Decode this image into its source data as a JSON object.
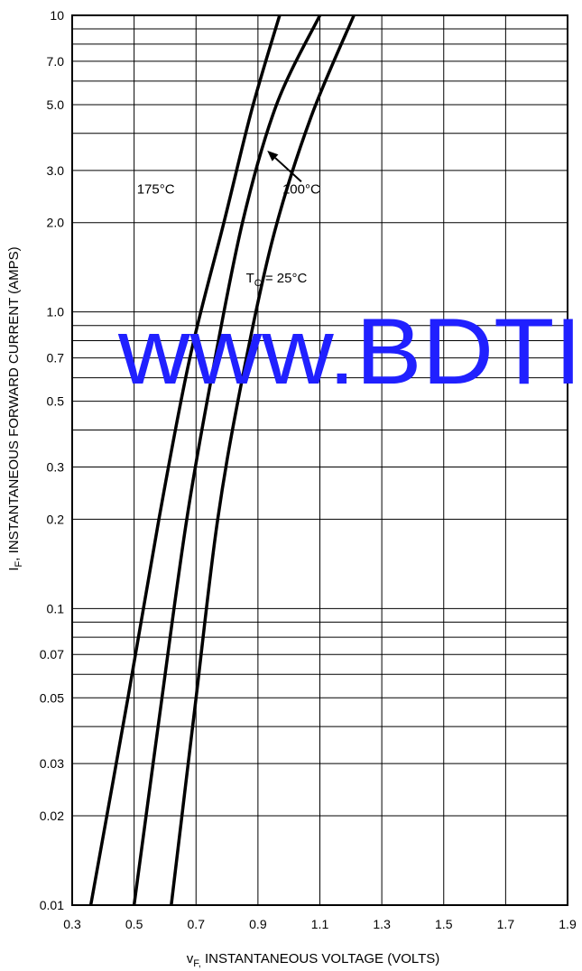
{
  "chart_data": {
    "type": "line",
    "x_scale": "linear",
    "y_scale": "log",
    "xlim": [
      0.3,
      1.9
    ],
    "ylim": [
      0.01,
      10
    ],
    "grid": true,
    "xlabel_main": "v",
    "xlabel_sub": "F,",
    "xlabel_rest": " INSTANTANEOUS VOLTAGE (VOLTS)",
    "ylabel_main": "I",
    "ylabel_sub": "F",
    "ylabel_rest": ", INSTANTANEOUS FORWARD CURRENT (AMPS)",
    "x_ticks": [
      0.3,
      0.5,
      0.7,
      0.9,
      1.1,
      1.3,
      1.5,
      1.7,
      1.9
    ],
    "x_tick_labels": [
      "0.3",
      "0.5",
      "0.7",
      "0.9",
      "1.1",
      "1.3",
      "1.5",
      "1.7",
      "1.9"
    ],
    "y_ticks": [
      0.01,
      0.02,
      0.03,
      0.05,
      0.07,
      0.1,
      0.2,
      0.3,
      0.5,
      0.7,
      1.0,
      2.0,
      3.0,
      5.0,
      7.0,
      10
    ],
    "y_tick_labels": [
      "0.01",
      "0.02",
      "0.03",
      "0.05",
      "0.07",
      "0.1",
      "0.2",
      "0.3",
      "0.5",
      "0.7",
      "1.0",
      "2.0",
      "3.0",
      "5.0",
      "7.0",
      "10"
    ],
    "y_minor_gridlines": [
      0.04,
      0.06,
      0.08,
      0.09,
      0.4,
      0.6,
      0.8,
      0.9,
      4,
      6,
      8,
      9
    ],
    "series": [
      {
        "label": "175°C",
        "points": [
          [
            0.36,
            0.01
          ],
          [
            0.48,
            0.05
          ],
          [
            0.58,
            0.2
          ],
          [
            0.68,
            0.7
          ],
          [
            0.79,
            2.0
          ],
          [
            0.88,
            4.8
          ],
          [
            0.97,
            10
          ]
        ]
      },
      {
        "label": "100°C",
        "points": [
          [
            0.5,
            0.01
          ],
          [
            0.59,
            0.05
          ],
          [
            0.67,
            0.2
          ],
          [
            0.75,
            0.6
          ],
          [
            0.85,
            2.0
          ],
          [
            0.96,
            5.0
          ],
          [
            1.1,
            10
          ]
        ]
      },
      {
        "label_main": "T",
        "label_sub": "C",
        "label_rest": " = 25°C",
        "points": [
          [
            0.62,
            0.01
          ],
          [
            0.7,
            0.05
          ],
          [
            0.77,
            0.2
          ],
          [
            0.85,
            0.6
          ],
          [
            0.95,
            1.8
          ],
          [
            1.07,
            4.5
          ],
          [
            1.21,
            10
          ]
        ]
      }
    ],
    "annotations": [
      {
        "text": "175°C",
        "x": 0.57,
        "y": 2.6
      },
      {
        "text": "100°C",
        "x": 1.04,
        "y": 2.6
      },
      {
        "text_main": "T",
        "text_sub": "C",
        "text_rest": " = 25°C",
        "x": 0.96,
        "y": 1.3
      }
    ],
    "arrow": {
      "from": [
        1.04,
        2.75
      ],
      "to": [
        0.93,
        3.5
      ]
    }
  },
  "watermark": "www.BDTI"
}
